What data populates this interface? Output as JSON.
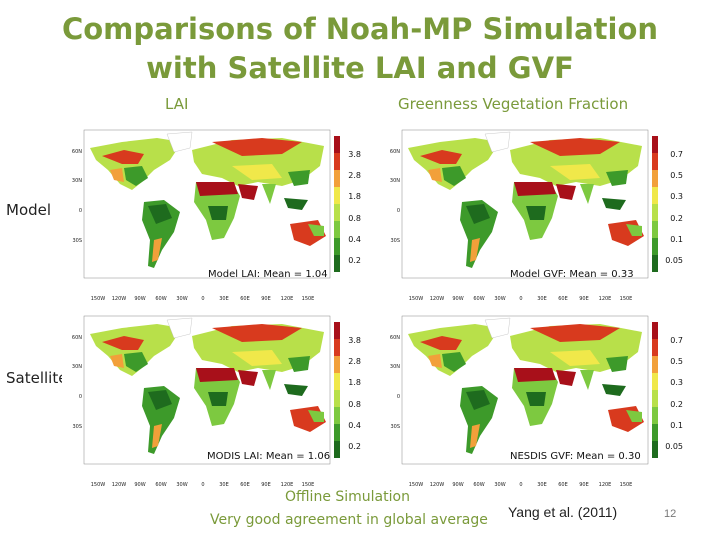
{
  "title": {
    "line1": "Comparisons of Noah-MP Simulation",
    "line2": "with Satellite LAI and GVF"
  },
  "columns": {
    "lai": "LAI",
    "gvf": "Greenness Vegetation Fraction"
  },
  "rows": {
    "model": "Model",
    "satellite": "Satellite"
  },
  "panels": {
    "model_lai": {
      "caption": "Model LAI: Mean = 1.04",
      "colorbar": [
        "3.8",
        "2.8",
        "1.8",
        "0.8",
        "0.4",
        "0.2"
      ]
    },
    "model_gvf": {
      "caption": "Model GVF: Mean = 0.33",
      "colorbar": [
        "0.7",
        "0.5",
        "0.3",
        "0.2",
        "0.1",
        "0.05"
      ]
    },
    "sat_lai": {
      "caption": "MODIS LAI: Mean = 1.06",
      "colorbar": [
        "3.8",
        "2.8",
        "1.8",
        "0.8",
        "0.4",
        "0.2"
      ]
    },
    "sat_gvf": {
      "caption": "NESDIS GVF: Mean = 0.30",
      "colorbar": [
        "0.7",
        "0.5",
        "0.3",
        "0.2",
        "0.1",
        "0.05"
      ]
    }
  },
  "axes": {
    "lat_ticks": [
      "60N",
      "30N",
      "0",
      "30S"
    ],
    "lon_ticks": [
      "150W",
      "120W",
      "90W",
      "60W",
      "30W",
      "0",
      "30E",
      "60E",
      "90E",
      "120E",
      "150E"
    ]
  },
  "footer": {
    "line1": "Offline Simulation",
    "line2": "Very good agreement in global average",
    "citation": "Yang et al. (2011)",
    "page": "12"
  },
  "colors": {
    "title": "#7a9a3a",
    "colorbar": [
      "#1e6b1e",
      "#3d9a2a",
      "#7dc940",
      "#b8e04a",
      "#f0e84a",
      "#f2a03a",
      "#d83a1e",
      "#a8101a"
    ]
  }
}
